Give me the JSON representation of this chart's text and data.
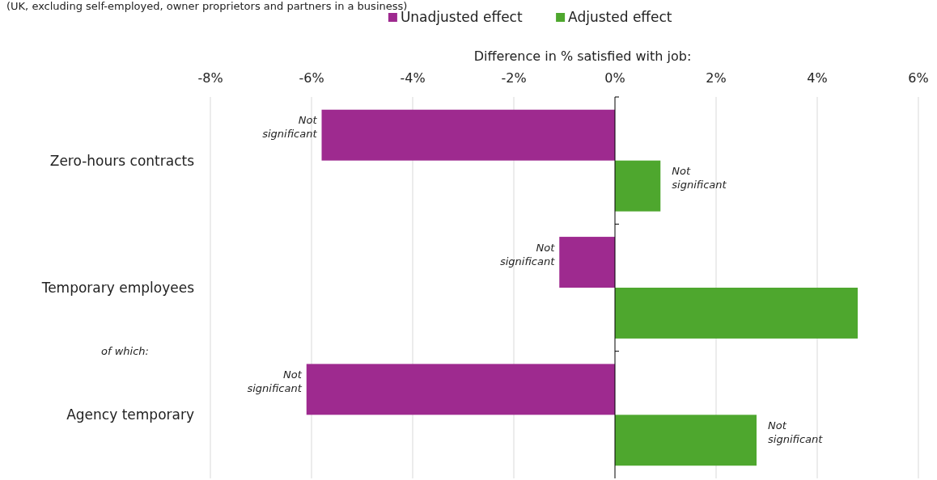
{
  "chart_data": {
    "type": "bar",
    "orientation": "horizontal",
    "subtitle": "(UK, excluding self-employed, owner proprietors and partners in a business)",
    "xlabel": "Difference in % satisfied with job:",
    "categories": [
      "Zero-hours contracts",
      "Temporary employees",
      "Agency temporary"
    ],
    "series": [
      {
        "name": "Unadjusted effect",
        "color": "#9e2a8f",
        "values": [
          -5.8,
          -1.1,
          -6.1
        ]
      },
      {
        "name": "Adjusted effect",
        "color": "#4ea72e",
        "values": [
          0.9,
          4.8,
          2.8
        ]
      }
    ],
    "xlim": [
      -8,
      6
    ],
    "xticks": [
      {
        "value": -8,
        "label": "-8%"
      },
      {
        "value": -6,
        "label": "-6%"
      },
      {
        "value": -4,
        "label": "-4%"
      },
      {
        "value": -2,
        "label": "-2%"
      },
      {
        "value": 0,
        "label": "0%"
      },
      {
        "value": 2,
        "label": "2%"
      },
      {
        "value": 4,
        "label": "4%"
      },
      {
        "value": 6,
        "label": "6%"
      }
    ],
    "grid": "x",
    "legend": "top",
    "annotations": [
      {
        "text": "Not significant",
        "x": -5.8,
        "y": "Zero-hours contracts"
      },
      {
        "text": "Not significant",
        "x": 0.9,
        "y": "Zero-hours contracts"
      },
      {
        "text": "Not significant",
        "x": -1.1,
        "y": "Temporary employees"
      },
      {
        "text": "Not significant",
        "x": -6.1,
        "y": "Agency temporary"
      },
      {
        "text": "Not significant",
        "x": 2.8,
        "y": "Agency temporary"
      },
      "of which:"
    ]
  }
}
